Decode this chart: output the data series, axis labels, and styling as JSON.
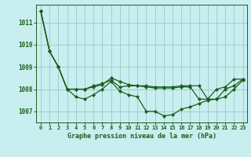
{
  "title": "Graphe pression niveau de la mer (hPa)",
  "background_color": "#c8eef0",
  "line_color": "#1a5e1a",
  "grid_color": "#a0cccc",
  "ylim": [
    1006.5,
    1011.8
  ],
  "yticks": [
    1007,
    1008,
    1009,
    1010,
    1011
  ],
  "xlim": [
    -0.5,
    23.5
  ],
  "xticks": [
    0,
    1,
    2,
    3,
    4,
    5,
    6,
    7,
    8,
    9,
    10,
    11,
    12,
    13,
    14,
    15,
    16,
    17,
    18,
    19,
    20,
    21,
    22,
    23
  ],
  "series": [
    [
      1011.5,
      1009.7,
      1009.0,
      1008.0,
      1007.65,
      1007.55,
      1007.75,
      1008.0,
      1008.35,
      1007.9,
      1007.75,
      1007.65,
      1007.0,
      1007.0,
      1006.8,
      1006.85,
      1007.1,
      1007.2,
      1007.35,
      1007.5,
      1007.55,
      1007.65,
      1008.0,
      1008.4
    ],
    [
      1011.5,
      1009.7,
      1009.0,
      1008.0,
      1008.0,
      1008.0,
      1008.15,
      1008.25,
      1008.4,
      1008.1,
      1008.15,
      1008.15,
      1008.15,
      1008.1,
      1008.1,
      1008.1,
      1008.15,
      1008.15,
      1008.15,
      1007.55,
      1007.55,
      1008.0,
      1008.15,
      1008.45
    ],
    [
      1011.5,
      1009.7,
      1009.0,
      1008.0,
      1008.0,
      1008.0,
      1008.1,
      1008.2,
      1008.5,
      1008.35,
      1008.2,
      1008.15,
      1008.1,
      1008.05,
      1008.05,
      1008.05,
      1008.1,
      1008.1,
      1007.55,
      1007.55,
      1008.0,
      1008.1,
      1008.45,
      1008.45
    ]
  ]
}
